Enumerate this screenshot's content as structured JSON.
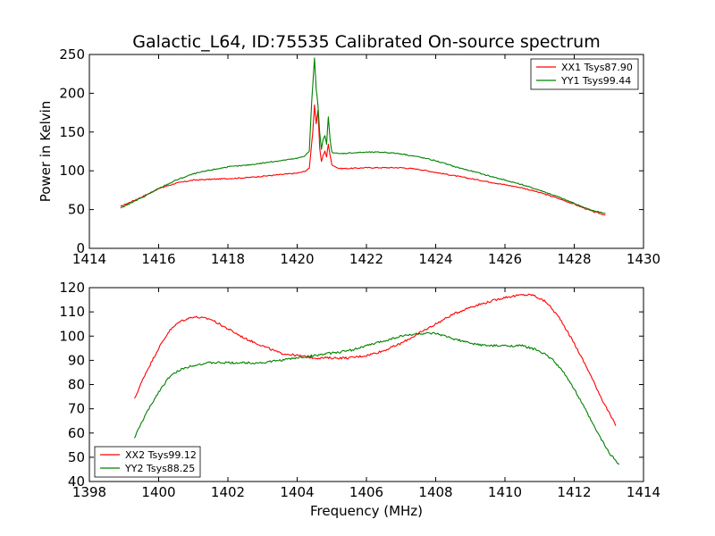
{
  "chart_data": [
    {
      "type": "line",
      "title": "Galactic_L64, ID:75535 Calibrated On-source spectrum",
      "xlabel": "",
      "ylabel": "Power in Kelvin",
      "xlim": [
        1414,
        1430
      ],
      "ylim": [
        0,
        250
      ],
      "xticks": [
        1414,
        1416,
        1418,
        1420,
        1422,
        1424,
        1426,
        1428,
        1430
      ],
      "yticks": [
        0,
        50,
        100,
        150,
        200,
        250
      ],
      "legend_position": "top-right",
      "grid": false,
      "series": [
        {
          "name": "XX1 Tsys87.90",
          "color": "#ff0000",
          "x": [
            1414.9,
            1415.5,
            1416.0,
            1416.5,
            1417.0,
            1417.5,
            1418.0,
            1418.5,
            1419.0,
            1419.5,
            1420.0,
            1420.2,
            1420.35,
            1420.45,
            1420.5,
            1420.55,
            1420.6,
            1420.65,
            1420.7,
            1420.75,
            1420.8,
            1420.85,
            1420.9,
            1420.95,
            1421.0,
            1421.2,
            1421.5,
            1422.0,
            1422.5,
            1423.0,
            1423.5,
            1424.0,
            1424.5,
            1425.0,
            1425.5,
            1426.0,
            1426.5,
            1427.0,
            1427.5,
            1428.0,
            1428.5,
            1428.9
          ],
          "values": [
            54,
            66,
            77,
            84,
            88,
            89,
            90,
            91,
            93,
            95,
            97,
            99,
            103,
            150,
            185,
            160,
            178,
            130,
            112,
            120,
            125,
            118,
            135,
            120,
            108,
            103,
            103,
            104,
            104,
            104,
            102,
            98,
            94,
            90,
            86,
            82,
            78,
            72,
            65,
            57,
            48,
            43
          ]
        },
        {
          "name": "YY1 Tsys99.44",
          "color": "#008000",
          "x": [
            1414.9,
            1415.5,
            1416.0,
            1416.5,
            1417.0,
            1417.5,
            1418.0,
            1418.5,
            1419.0,
            1419.5,
            1420.0,
            1420.2,
            1420.35,
            1420.42,
            1420.5,
            1420.55,
            1420.6,
            1420.65,
            1420.7,
            1420.75,
            1420.8,
            1420.85,
            1420.9,
            1420.95,
            1421.0,
            1421.2,
            1421.5,
            1422.0,
            1422.5,
            1423.0,
            1423.5,
            1424.0,
            1424.5,
            1425.0,
            1425.5,
            1426.0,
            1426.5,
            1427.0,
            1427.5,
            1428.0,
            1428.5,
            1428.9
          ],
          "values": [
            52,
            65,
            77,
            88,
            96,
            101,
            105,
            107,
            110,
            113,
            116,
            119,
            125,
            190,
            245,
            205,
            185,
            150,
            128,
            140,
            145,
            135,
            170,
            140,
            124,
            122,
            123,
            124,
            124,
            122,
            118,
            113,
            106,
            100,
            94,
            88,
            82,
            75,
            67,
            58,
            49,
            45
          ]
        }
      ]
    },
    {
      "type": "line",
      "title": "",
      "xlabel": "Frequency (MHz)",
      "ylabel": "",
      "xlim": [
        1398,
        1414
      ],
      "ylim": [
        40,
        120
      ],
      "xticks": [
        1398,
        1400,
        1402,
        1404,
        1406,
        1408,
        1410,
        1412,
        1414
      ],
      "yticks": [
        40,
        50,
        60,
        70,
        80,
        90,
        100,
        110,
        120
      ],
      "legend_position": "bottom-left",
      "grid": false,
      "series": [
        {
          "name": "XX2 Tsys99.12",
          "color": "#ff0000",
          "x": [
            1399.3,
            1399.6,
            1400.0,
            1400.3,
            1400.6,
            1401.0,
            1401.5,
            1402.0,
            1402.5,
            1403.0,
            1403.5,
            1404.0,
            1404.5,
            1405.0,
            1405.5,
            1406.0,
            1406.5,
            1407.0,
            1407.5,
            1408.0,
            1408.5,
            1409.0,
            1409.5,
            1410.0,
            1410.5,
            1410.8,
            1411.2,
            1411.6,
            1412.0,
            1412.4,
            1412.8,
            1413.2
          ],
          "values": [
            74,
            84,
            95,
            102,
            106,
            108,
            107,
            103,
            99,
            96,
            93,
            92,
            91,
            91,
            91,
            92,
            94,
            97,
            101,
            105,
            109,
            112,
            114,
            116,
            117,
            117,
            114,
            107,
            97,
            86,
            74,
            63
          ]
        },
        {
          "name": "YY2 Tsys88.25",
          "color": "#008000",
          "x": [
            1399.3,
            1399.6,
            1400.0,
            1400.3,
            1400.6,
            1401.0,
            1401.5,
            1402.0,
            1402.5,
            1403.0,
            1403.5,
            1404.0,
            1404.5,
            1405.0,
            1405.5,
            1406.0,
            1406.5,
            1407.0,
            1407.5,
            1408.0,
            1408.5,
            1409.0,
            1409.5,
            1410.0,
            1410.5,
            1411.0,
            1411.4,
            1411.8,
            1412.2,
            1412.6,
            1413.0,
            1413.3
          ],
          "values": [
            58,
            67,
            77,
            83,
            86,
            88,
            89,
            89,
            89,
            89,
            90,
            91,
            92,
            93,
            94,
            96,
            98,
            100,
            101,
            101,
            99,
            97,
            96,
            96,
            96,
            94,
            90,
            83,
            73,
            62,
            52,
            47
          ]
        }
      ]
    }
  ]
}
